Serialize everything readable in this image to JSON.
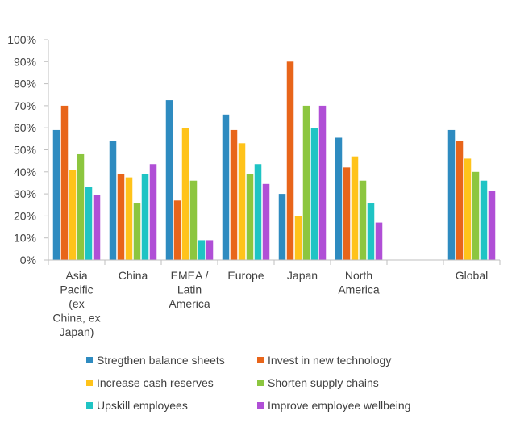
{
  "chart_data": {
    "type": "bar",
    "categories": [
      [
        "Asia",
        "Pacific",
        "(ex",
        "China, ex",
        "Japan)"
      ],
      [
        "China"
      ],
      [
        "EMEA /",
        "Latin",
        "America"
      ],
      [
        "Europe"
      ],
      [
        "Japan"
      ],
      [
        "North",
        "America"
      ],
      [],
      [
        "Global"
      ]
    ],
    "ylim": [
      0,
      100
    ],
    "yticks": [
      "0%",
      "10%",
      "20%",
      "30%",
      "40%",
      "50%",
      "60%",
      "70%",
      "80%",
      "90%",
      "100%"
    ],
    "grid": false,
    "legend_position": "bottom",
    "series": [
      {
        "name": "Stregthen balance sheets",
        "color": "#2e8bc0",
        "values": [
          59,
          54,
          72.5,
          66,
          30,
          55.5,
          null,
          59
        ]
      },
      {
        "name": "Invest in new technology",
        "color": "#e8651a",
        "values": [
          70,
          39,
          27,
          59,
          90,
          42,
          null,
          54
        ]
      },
      {
        "name": "Increase cash reserves",
        "color": "#ffc31a",
        "values": [
          41,
          37.5,
          60,
          53,
          20,
          47,
          null,
          46
        ]
      },
      {
        "name": "Shorten supply chains",
        "color": "#8cc63f",
        "values": [
          48,
          26,
          36,
          39,
          70,
          36,
          null,
          40
        ]
      },
      {
        "name": "Upskill employees",
        "color": "#1fc4c4",
        "values": [
          33,
          39,
          9,
          43.5,
          60,
          26,
          null,
          36
        ]
      },
      {
        "name": "Improve employee wellbeing",
        "color": "#b04fd6",
        "values": [
          29.5,
          43.5,
          9,
          34.5,
          70,
          17,
          null,
          31.5
        ]
      }
    ]
  }
}
